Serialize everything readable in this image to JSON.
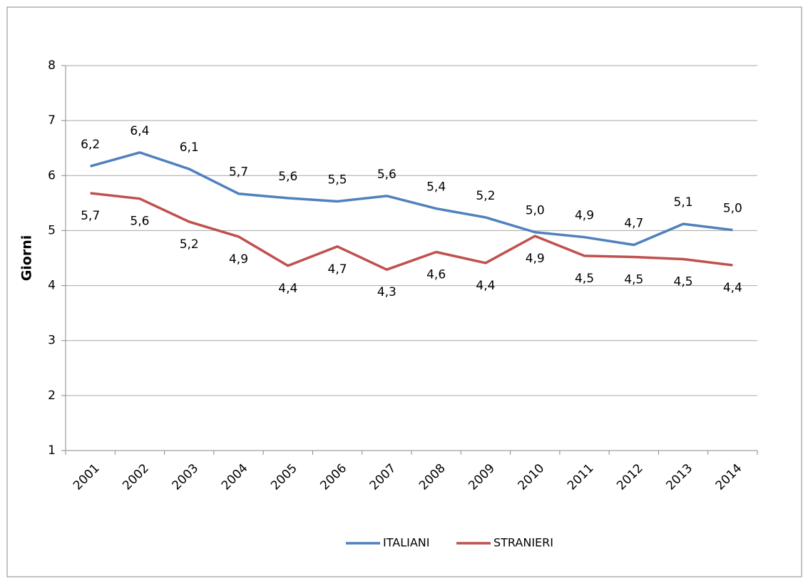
{
  "chart_data": {
    "type": "line",
    "ylabel": "Giorni",
    "categories": [
      "2001",
      "2002",
      "2003",
      "2004",
      "2005",
      "2006",
      "2007",
      "2008",
      "2009",
      "2010",
      "2011",
      "2012",
      "2013",
      "2014"
    ],
    "series": [
      {
        "name": "ITALIANI",
        "color": "#4f81bd",
        "values": [
          6.17,
          6.42,
          6.12,
          5.67,
          5.59,
          5.53,
          5.63,
          5.4,
          5.24,
          4.97,
          4.88,
          4.74,
          5.12,
          5.01
        ],
        "value_labels": [
          "6,2",
          "6,4",
          "6,1",
          "5,7",
          "5,6",
          "5,5",
          "5,6",
          "5,4",
          "5,2",
          "5,0",
          "4,9",
          "4,7",
          "5,1",
          "5,0"
        ]
      },
      {
        "name": "STRANIERI",
        "color": "#c0504d",
        "values": [
          5.68,
          5.58,
          5.16,
          4.89,
          4.36,
          4.71,
          4.29,
          4.61,
          4.41,
          4.9,
          4.54,
          4.52,
          4.48,
          4.37
        ],
        "value_labels": [
          "5,7",
          "5,6",
          "5,2",
          "4,9",
          "4,4",
          "4,7",
          "4,3",
          "4,6",
          "4,4",
          "4,9",
          "4,5",
          "4,5",
          "4,5",
          "4,4"
        ]
      }
    ],
    "ylim": [
      1,
      8
    ],
    "yticks": [
      1,
      2,
      3,
      4,
      5,
      6,
      7,
      8
    ],
    "grid": true,
    "legend": "bottom"
  }
}
